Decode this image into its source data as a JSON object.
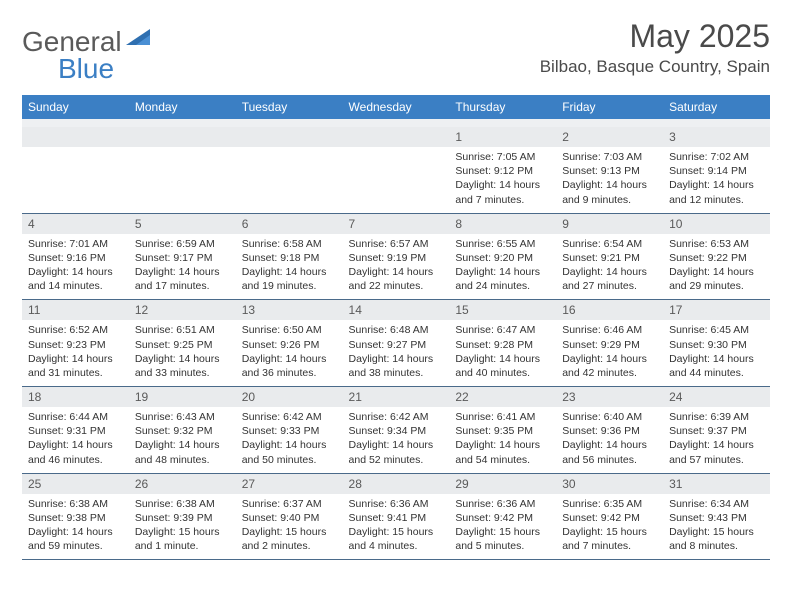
{
  "header": {
    "logo_general": "General",
    "logo_blue": "Blue",
    "month_title": "May 2025",
    "location": "Bilbao, Basque Country, Spain"
  },
  "colors": {
    "header_bg": "#3b7fc4",
    "header_text": "#ffffff",
    "daynum_bg": "#e9ebed",
    "border": "#4a6a8a",
    "text": "#333333"
  },
  "day_names": [
    "Sunday",
    "Monday",
    "Tuesday",
    "Wednesday",
    "Thursday",
    "Friday",
    "Saturday"
  ],
  "weeks": [
    [
      {
        "n": "",
        "sr": "",
        "ss": "",
        "dl": ""
      },
      {
        "n": "",
        "sr": "",
        "ss": "",
        "dl": ""
      },
      {
        "n": "",
        "sr": "",
        "ss": "",
        "dl": ""
      },
      {
        "n": "",
        "sr": "",
        "ss": "",
        "dl": ""
      },
      {
        "n": "1",
        "sr": "Sunrise: 7:05 AM",
        "ss": "Sunset: 9:12 PM",
        "dl": "Daylight: 14 hours and 7 minutes."
      },
      {
        "n": "2",
        "sr": "Sunrise: 7:03 AM",
        "ss": "Sunset: 9:13 PM",
        "dl": "Daylight: 14 hours and 9 minutes."
      },
      {
        "n": "3",
        "sr": "Sunrise: 7:02 AM",
        "ss": "Sunset: 9:14 PM",
        "dl": "Daylight: 14 hours and 12 minutes."
      }
    ],
    [
      {
        "n": "4",
        "sr": "Sunrise: 7:01 AM",
        "ss": "Sunset: 9:16 PM",
        "dl": "Daylight: 14 hours and 14 minutes."
      },
      {
        "n": "5",
        "sr": "Sunrise: 6:59 AM",
        "ss": "Sunset: 9:17 PM",
        "dl": "Daylight: 14 hours and 17 minutes."
      },
      {
        "n": "6",
        "sr": "Sunrise: 6:58 AM",
        "ss": "Sunset: 9:18 PM",
        "dl": "Daylight: 14 hours and 19 minutes."
      },
      {
        "n": "7",
        "sr": "Sunrise: 6:57 AM",
        "ss": "Sunset: 9:19 PM",
        "dl": "Daylight: 14 hours and 22 minutes."
      },
      {
        "n": "8",
        "sr": "Sunrise: 6:55 AM",
        "ss": "Sunset: 9:20 PM",
        "dl": "Daylight: 14 hours and 24 minutes."
      },
      {
        "n": "9",
        "sr": "Sunrise: 6:54 AM",
        "ss": "Sunset: 9:21 PM",
        "dl": "Daylight: 14 hours and 27 minutes."
      },
      {
        "n": "10",
        "sr": "Sunrise: 6:53 AM",
        "ss": "Sunset: 9:22 PM",
        "dl": "Daylight: 14 hours and 29 minutes."
      }
    ],
    [
      {
        "n": "11",
        "sr": "Sunrise: 6:52 AM",
        "ss": "Sunset: 9:23 PM",
        "dl": "Daylight: 14 hours and 31 minutes."
      },
      {
        "n": "12",
        "sr": "Sunrise: 6:51 AM",
        "ss": "Sunset: 9:25 PM",
        "dl": "Daylight: 14 hours and 33 minutes."
      },
      {
        "n": "13",
        "sr": "Sunrise: 6:50 AM",
        "ss": "Sunset: 9:26 PM",
        "dl": "Daylight: 14 hours and 36 minutes."
      },
      {
        "n": "14",
        "sr": "Sunrise: 6:48 AM",
        "ss": "Sunset: 9:27 PM",
        "dl": "Daylight: 14 hours and 38 minutes."
      },
      {
        "n": "15",
        "sr": "Sunrise: 6:47 AM",
        "ss": "Sunset: 9:28 PM",
        "dl": "Daylight: 14 hours and 40 minutes."
      },
      {
        "n": "16",
        "sr": "Sunrise: 6:46 AM",
        "ss": "Sunset: 9:29 PM",
        "dl": "Daylight: 14 hours and 42 minutes."
      },
      {
        "n": "17",
        "sr": "Sunrise: 6:45 AM",
        "ss": "Sunset: 9:30 PM",
        "dl": "Daylight: 14 hours and 44 minutes."
      }
    ],
    [
      {
        "n": "18",
        "sr": "Sunrise: 6:44 AM",
        "ss": "Sunset: 9:31 PM",
        "dl": "Daylight: 14 hours and 46 minutes."
      },
      {
        "n": "19",
        "sr": "Sunrise: 6:43 AM",
        "ss": "Sunset: 9:32 PM",
        "dl": "Daylight: 14 hours and 48 minutes."
      },
      {
        "n": "20",
        "sr": "Sunrise: 6:42 AM",
        "ss": "Sunset: 9:33 PM",
        "dl": "Daylight: 14 hours and 50 minutes."
      },
      {
        "n": "21",
        "sr": "Sunrise: 6:42 AM",
        "ss": "Sunset: 9:34 PM",
        "dl": "Daylight: 14 hours and 52 minutes."
      },
      {
        "n": "22",
        "sr": "Sunrise: 6:41 AM",
        "ss": "Sunset: 9:35 PM",
        "dl": "Daylight: 14 hours and 54 minutes."
      },
      {
        "n": "23",
        "sr": "Sunrise: 6:40 AM",
        "ss": "Sunset: 9:36 PM",
        "dl": "Daylight: 14 hours and 56 minutes."
      },
      {
        "n": "24",
        "sr": "Sunrise: 6:39 AM",
        "ss": "Sunset: 9:37 PM",
        "dl": "Daylight: 14 hours and 57 minutes."
      }
    ],
    [
      {
        "n": "25",
        "sr": "Sunrise: 6:38 AM",
        "ss": "Sunset: 9:38 PM",
        "dl": "Daylight: 14 hours and 59 minutes."
      },
      {
        "n": "26",
        "sr": "Sunrise: 6:38 AM",
        "ss": "Sunset: 9:39 PM",
        "dl": "Daylight: 15 hours and 1 minute."
      },
      {
        "n": "27",
        "sr": "Sunrise: 6:37 AM",
        "ss": "Sunset: 9:40 PM",
        "dl": "Daylight: 15 hours and 2 minutes."
      },
      {
        "n": "28",
        "sr": "Sunrise: 6:36 AM",
        "ss": "Sunset: 9:41 PM",
        "dl": "Daylight: 15 hours and 4 minutes."
      },
      {
        "n": "29",
        "sr": "Sunrise: 6:36 AM",
        "ss": "Sunset: 9:42 PM",
        "dl": "Daylight: 15 hours and 5 minutes."
      },
      {
        "n": "30",
        "sr": "Sunrise: 6:35 AM",
        "ss": "Sunset: 9:42 PM",
        "dl": "Daylight: 15 hours and 7 minutes."
      },
      {
        "n": "31",
        "sr": "Sunrise: 6:34 AM",
        "ss": "Sunset: 9:43 PM",
        "dl": "Daylight: 15 hours and 8 minutes."
      }
    ]
  ]
}
